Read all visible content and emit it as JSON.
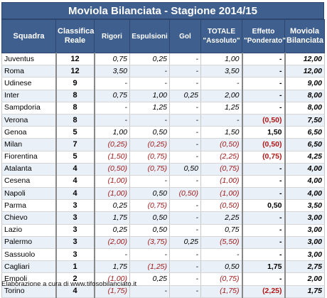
{
  "title": "Moviola Bilanciata - Stagione 2014/15",
  "headers": {
    "squadra": "Squadra",
    "classifica_1": "Classifica",
    "classifica_2": "Reale",
    "rigori": "Rigori",
    "espulsioni": "Espulsioni",
    "gol": "Gol",
    "totale_1": "TOTALE",
    "totale_2": "\"Assoluto\"",
    "effetto_1": "Effetto",
    "effetto_2": "\"Ponderato\"",
    "moviola_1": "Moviola",
    "moviola_2": "Bilanciata"
  },
  "rows": [
    {
      "squadra": "Juventus",
      "classifica": "12",
      "rigori": "0,75",
      "espulsioni": "0,25",
      "gol": "-",
      "totale": "1,00",
      "effetto": "-",
      "moviola": "12,00"
    },
    {
      "squadra": "Roma",
      "classifica": "12",
      "rigori": "3,50",
      "espulsioni": "-",
      "gol": "-",
      "totale": "3,50",
      "effetto": "-",
      "moviola": "12,00"
    },
    {
      "squadra": "Udinese",
      "classifica": "9",
      "rigori": "-",
      "espulsioni": "-",
      "gol": "-",
      "totale": "-",
      "effetto": "-",
      "moviola": "9,00"
    },
    {
      "squadra": "Inter",
      "classifica": "8",
      "rigori": "0,75",
      "espulsioni": "1,00",
      "gol": "0,25",
      "totale": "2,00",
      "effetto": "-",
      "moviola": "8,00"
    },
    {
      "squadra": "Sampdoria",
      "classifica": "8",
      "rigori": "-",
      "espulsioni": "1,25",
      "gol": "-",
      "totale": "1,25",
      "effetto": "-",
      "moviola": "8,00"
    },
    {
      "squadra": "Verona",
      "classifica": "8",
      "rigori": "-",
      "espulsioni": "-",
      "gol": "-",
      "totale": "-",
      "effetto": "(0,50)",
      "moviola": "7,50"
    },
    {
      "squadra": "Genoa",
      "classifica": "5",
      "rigori": "1,00",
      "espulsioni": "0,50",
      "gol": "-",
      "totale": "1,50",
      "effetto": "1,50",
      "moviola": "6,50"
    },
    {
      "squadra": "Milan",
      "classifica": "7",
      "rigori": "(0,25)",
      "espulsioni": "(0,25)",
      "gol": "-",
      "totale": "(0,50)",
      "effetto": "(0,50)",
      "moviola": "6,50"
    },
    {
      "squadra": "Fiorentina",
      "classifica": "5",
      "rigori": "(1,50)",
      "espulsioni": "(0,75)",
      "gol": "-",
      "totale": "(2,25)",
      "effetto": "(0,75)",
      "moviola": "4,25"
    },
    {
      "squadra": "Atalanta",
      "classifica": "4",
      "rigori": "(0,50)",
      "espulsioni": "(0,75)",
      "gol": "0,50",
      "totale": "(0,75)",
      "effetto": "-",
      "moviola": "4,00"
    },
    {
      "squadra": "Cesena",
      "classifica": "4",
      "rigori": "(1,00)",
      "espulsioni": "-",
      "gol": "-",
      "totale": "(1,00)",
      "effetto": "-",
      "moviola": "4,00"
    },
    {
      "squadra": "Napoli",
      "classifica": "4",
      "rigori": "(1,00)",
      "espulsioni": "0,50",
      "gol": "(0,50)",
      "totale": "(1,00)",
      "effetto": "-",
      "moviola": "4,00"
    },
    {
      "squadra": "Parma",
      "classifica": "3",
      "rigori": "0,25",
      "espulsioni": "(0,75)",
      "gol": "-",
      "totale": "(0,50)",
      "effetto": "0,50",
      "moviola": "3,50"
    },
    {
      "squadra": "Chievo",
      "classifica": "3",
      "rigori": "1,75",
      "espulsioni": "0,50",
      "gol": "-",
      "totale": "2,25",
      "effetto": "-",
      "moviola": "3,00"
    },
    {
      "squadra": "Lazio",
      "classifica": "3",
      "rigori": "0,25",
      "espulsioni": "0,50",
      "gol": "-",
      "totale": "0,75",
      "effetto": "-",
      "moviola": "3,00"
    },
    {
      "squadra": "Palermo",
      "classifica": "3",
      "rigori": "(2,00)",
      "espulsioni": "(3,75)",
      "gol": "0,25",
      "totale": "(5,50)",
      "effetto": "-",
      "moviola": "3,00"
    },
    {
      "squadra": "Sassuolo",
      "classifica": "3",
      "rigori": "-",
      "espulsioni": "-",
      "gol": "-",
      "totale": "-",
      "effetto": "-",
      "moviola": "3,00"
    },
    {
      "squadra": "Cagliari",
      "classifica": "1",
      "rigori": "1,75",
      "espulsioni": "(1,25)",
      "gol": "-",
      "totale": "0,50",
      "effetto": "1,75",
      "moviola": "2,75"
    },
    {
      "squadra": "Empoli",
      "classifica": "2",
      "rigori": "(1,00)",
      "espulsioni": "0,25",
      "gol": "-",
      "totale": "(0,75)",
      "effetto": "-",
      "moviola": "2,00"
    },
    {
      "squadra": "Torino",
      "classifica": "4",
      "rigori": "(1,75)",
      "espulsioni": "-",
      "gol": "-",
      "totale": "(1,75)",
      "effetto": "(2,25)",
      "moviola": "1,75"
    }
  ],
  "footer": "Elaborazione a cura di www.tifosobilanciato.it"
}
